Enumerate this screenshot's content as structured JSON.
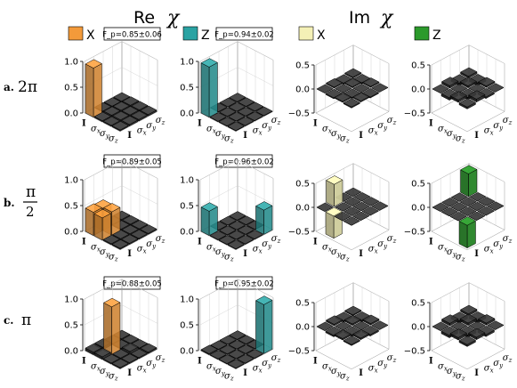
{
  "header": {
    "re_label": "Re",
    "im_label": "Im",
    "chi_symbol": "χ",
    "x_label": "X",
    "z_label": "Z"
  },
  "legend_colors": {
    "re_x": "#f39a3a",
    "re_z": "#2aa3a3",
    "im_x": "#f4f0b6",
    "im_z": "#2b9a2b"
  },
  "rows": [
    {
      "letter": "a.",
      "angle_text": "2π",
      "fidelities": [
        "F_p=0.85±0.06",
        "F_p=0.94±0.02"
      ]
    },
    {
      "letter": "b.",
      "angle_num": "π",
      "angle_den": "2",
      "fidelities": [
        "F_p=0.89±0.05",
        "F_p=0.96±0.02"
      ]
    },
    {
      "letter": "c.",
      "angle_text": "π",
      "fidelities": [
        "F_p=0.88±0.05",
        "F_p=0.95±0.02"
      ]
    }
  ],
  "chart_data": {
    "type": "bar",
    "subtype": "3d-bar-grid",
    "basis_labels": [
      "I",
      "σx",
      "σy",
      "σz"
    ],
    "axis_ticks_re": [
      "0.0",
      "0.5",
      "1.0"
    ],
    "axis_ticks_im": [
      "−0.5",
      "0.0",
      "0.5"
    ],
    "zlim_re": [
      0,
      1
    ],
    "zlim_im": [
      -0.5,
      0.5
    ],
    "panels": [
      {
        "row": "a",
        "part": "Re",
        "gate": "X",
        "color": "#f39a3a",
        "matrix": [
          [
            0.95,
            0.02,
            0.02,
            0.02
          ],
          [
            0.02,
            0.03,
            0.03,
            0.03
          ],
          [
            0.02,
            0.03,
            0.03,
            0.03
          ],
          [
            0.02,
            0.03,
            0.03,
            0.03
          ]
        ]
      },
      {
        "row": "a",
        "part": "Re",
        "gate": "Z",
        "color": "#2aa3a3",
        "matrix": [
          [
            0.97,
            0.01,
            0.01,
            0.01
          ],
          [
            0.01,
            0.01,
            0.01,
            0.01
          ],
          [
            0.01,
            0.01,
            0.01,
            0.01
          ],
          [
            0.01,
            0.01,
            0.01,
            0.01
          ]
        ]
      },
      {
        "row": "a",
        "part": "Im",
        "gate": "X",
        "color": "#f4f0b6",
        "matrix": [
          [
            0.0,
            0.02,
            -0.02,
            0.02
          ],
          [
            -0.02,
            0.0,
            0.02,
            -0.02
          ],
          [
            0.02,
            -0.02,
            0.0,
            0.02
          ],
          [
            -0.02,
            0.02,
            -0.02,
            0.0
          ]
        ]
      },
      {
        "row": "a",
        "part": "Im",
        "gate": "Z",
        "color": "#2b9a2b",
        "matrix": [
          [
            0.0,
            0.05,
            -0.05,
            0.04
          ],
          [
            -0.05,
            0.0,
            0.04,
            -0.06
          ],
          [
            0.05,
            -0.04,
            0.0,
            0.03
          ],
          [
            -0.04,
            0.06,
            -0.03,
            0.0
          ]
        ]
      },
      {
        "row": "b",
        "part": "Re",
        "gate": "X",
        "color": "#f39a3a",
        "matrix": [
          [
            0.45,
            0.43,
            0.02,
            0.02
          ],
          [
            0.43,
            0.45,
            0.02,
            0.02
          ],
          [
            0.02,
            0.02,
            0.02,
            0.02
          ],
          [
            0.02,
            0.02,
            0.02,
            0.02
          ]
        ]
      },
      {
        "row": "b",
        "part": "Re",
        "gate": "Z",
        "color": "#2aa3a3",
        "matrix": [
          [
            0.47,
            0.01,
            0.01,
            0.01
          ],
          [
            0.01,
            0.01,
            0.01,
            0.01
          ],
          [
            0.01,
            0.01,
            0.01,
            0.01
          ],
          [
            0.01,
            0.01,
            0.01,
            0.47
          ]
        ]
      },
      {
        "row": "b",
        "part": "Im",
        "gate": "X",
        "color": "#f4f0b6",
        "matrix": [
          [
            0.0,
            0.46,
            0.0,
            0.0
          ],
          [
            -0.46,
            0.0,
            0.0,
            0.0
          ],
          [
            0.0,
            0.0,
            0.0,
            0.0
          ],
          [
            0.0,
            0.0,
            0.0,
            0.0
          ]
        ]
      },
      {
        "row": "b",
        "part": "Im",
        "gate": "Z",
        "color": "#2b9a2b",
        "matrix": [
          [
            0.0,
            0.0,
            0.0,
            0.47
          ],
          [
            0.0,
            0.0,
            0.0,
            0.0
          ],
          [
            0.0,
            0.0,
            0.0,
            0.0
          ],
          [
            -0.47,
            0.0,
            0.0,
            0.0
          ]
        ]
      },
      {
        "row": "c",
        "part": "Re",
        "gate": "X",
        "color": "#f39a3a",
        "matrix": [
          [
            0.05,
            0.05,
            0.02,
            0.02
          ],
          [
            0.05,
            0.92,
            0.02,
            0.02
          ],
          [
            0.02,
            0.02,
            0.05,
            0.02
          ],
          [
            0.02,
            0.02,
            0.02,
            0.03
          ]
        ]
      },
      {
        "row": "c",
        "part": "Re",
        "gate": "Z",
        "color": "#2aa3a3",
        "matrix": [
          [
            0.02,
            0.01,
            0.01,
            0.01
          ],
          [
            0.01,
            0.01,
            0.01,
            0.01
          ],
          [
            0.01,
            0.01,
            0.01,
            0.01
          ],
          [
            0.01,
            0.01,
            0.01,
            0.95
          ]
        ]
      },
      {
        "row": "c",
        "part": "Im",
        "gate": "X",
        "color": "#f4f0b6",
        "matrix": [
          [
            0.0,
            0.03,
            -0.03,
            0.02
          ],
          [
            -0.03,
            0.0,
            0.03,
            -0.03
          ],
          [
            0.03,
            -0.03,
            0.0,
            0.03
          ],
          [
            -0.02,
            0.03,
            -0.03,
            0.0
          ]
        ]
      },
      {
        "row": "c",
        "part": "Im",
        "gate": "Z",
        "color": "#2b9a2b",
        "matrix": [
          [
            0.0,
            0.05,
            -0.05,
            0.04
          ],
          [
            -0.05,
            0.0,
            0.05,
            -0.05
          ],
          [
            0.05,
            -0.05,
            0.0,
            0.04
          ],
          [
            -0.04,
            0.05,
            -0.04,
            0.0
          ]
        ]
      }
    ]
  }
}
